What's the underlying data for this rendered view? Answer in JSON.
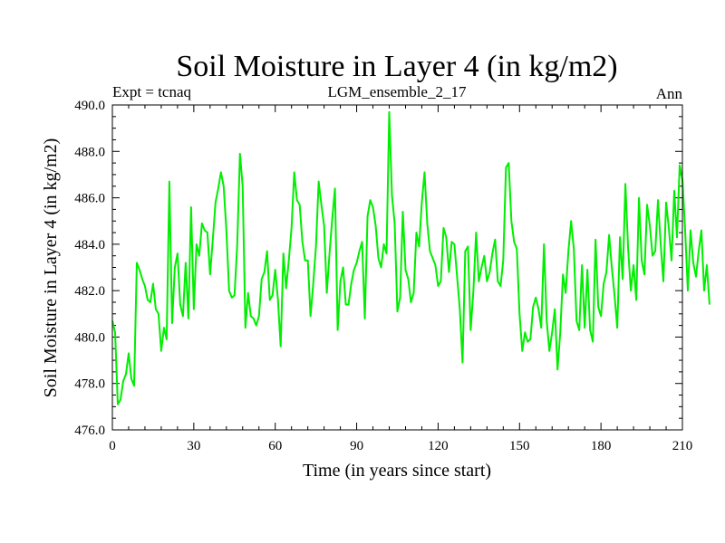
{
  "chart_data": {
    "type": "line",
    "title": "Soil Moisture in Layer 4 (in kg/m2)",
    "experiment": "Expt = tcnaq",
    "subtitle": "LGM_ensemble_2_17",
    "season": "Ann",
    "xlabel": "Time (in years since start)",
    "ylabel": "Soil Moisture in Layer 4 (in kg/m2)",
    "xlim": [
      0,
      210
    ],
    "ylim": [
      476,
      490
    ],
    "xticks": [
      0,
      30,
      60,
      90,
      120,
      150,
      180,
      210
    ],
    "xtick_labels": [
      "0",
      "30",
      "60",
      "90",
      "120",
      "150",
      "180",
      "210"
    ],
    "yticks": [
      476,
      478,
      480,
      482,
      484,
      486,
      488,
      490
    ],
    "ytick_labels": [
      "476.0",
      "478.0",
      "480.0",
      "482.0",
      "484.0",
      "486.0",
      "488.0",
      "490.0"
    ],
    "grid": false,
    "series": [
      {
        "name": "Soil Moisture",
        "color": "#00ee00",
        "x_start": 0,
        "x_step": 1,
        "values": [
          480.7,
          480.2,
          477.1,
          477.3,
          478.1,
          478.4,
          479.3,
          478.2,
          477.9,
          483.2,
          482.9,
          482.5,
          482.2,
          481.6,
          481.5,
          482.3,
          481.2,
          481.0,
          479.4,
          480.4,
          479.9,
          486.7,
          480.6,
          483.0,
          483.6,
          481.4,
          480.9,
          483.2,
          480.8,
          485.6,
          481.2,
          484.0,
          483.5,
          484.9,
          484.6,
          484.5,
          482.7,
          484.2,
          485.8,
          486.4,
          487.1,
          486.5,
          484.6,
          482.0,
          481.7,
          481.8,
          484.0,
          487.9,
          486.5,
          480.4,
          481.9,
          480.9,
          480.8,
          480.5,
          480.9,
          482.5,
          482.8,
          483.7,
          481.6,
          481.8,
          482.9,
          481.6,
          479.6,
          483.6,
          482.1,
          483.3,
          484.7,
          487.1,
          485.9,
          485.7,
          484.1,
          483.3,
          483.3,
          480.9,
          482.3,
          483.9,
          486.7,
          485.7,
          484.8,
          481.9,
          483.6,
          485.1,
          486.4,
          480.3,
          482.4,
          483.0,
          481.4,
          481.4,
          482.3,
          482.9,
          483.2,
          483.7,
          484.1,
          480.8,
          485.2,
          485.9,
          485.6,
          484.8,
          483.4,
          483.0,
          484.0,
          483.6,
          489.7,
          486.1,
          484.9,
          481.1,
          481.7,
          485.4,
          482.9,
          482.5,
          481.5,
          481.9,
          484.5,
          483.9,
          485.8,
          487.1,
          484.9,
          483.7,
          483.4,
          483.1,
          482.2,
          482.4,
          484.7,
          484.3,
          482.8,
          484.1,
          484.0,
          482.6,
          481.2,
          478.9,
          483.7,
          483.9,
          480.3,
          482.0,
          484.5,
          482.4,
          483.0,
          483.5,
          482.4,
          482.8,
          483.6,
          484.2,
          482.4,
          482.2,
          483.3,
          487.3,
          487.5,
          485.0,
          484.1,
          483.8,
          481.0,
          479.4,
          480.2,
          479.8,
          479.9,
          481.3,
          481.7,
          481.2,
          480.4,
          484.0,
          480.7,
          479.4,
          480.2,
          481.2,
          478.6,
          480.2,
          482.7,
          481.9,
          483.7,
          485.0,
          483.8,
          480.7,
          480.3,
          483.1,
          480.4,
          482.9,
          480.3,
          479.8,
          484.2,
          481.3,
          480.9,
          482.3,
          482.8,
          484.4,
          483.0,
          481.8,
          480.4,
          484.3,
          482.5,
          486.6,
          483.8,
          482.0,
          483.1,
          481.6,
          486.0,
          483.3,
          482.7,
          485.7,
          484.8,
          483.5,
          483.7,
          485.9,
          484.0,
          482.4,
          485.8,
          484.7,
          483.3,
          486.3,
          484.3,
          487.4,
          486.8,
          484.6,
          482.0,
          484.6,
          483.2,
          482.6,
          483.7,
          484.6,
          482.0,
          483.1,
          481.4
        ]
      }
    ]
  }
}
